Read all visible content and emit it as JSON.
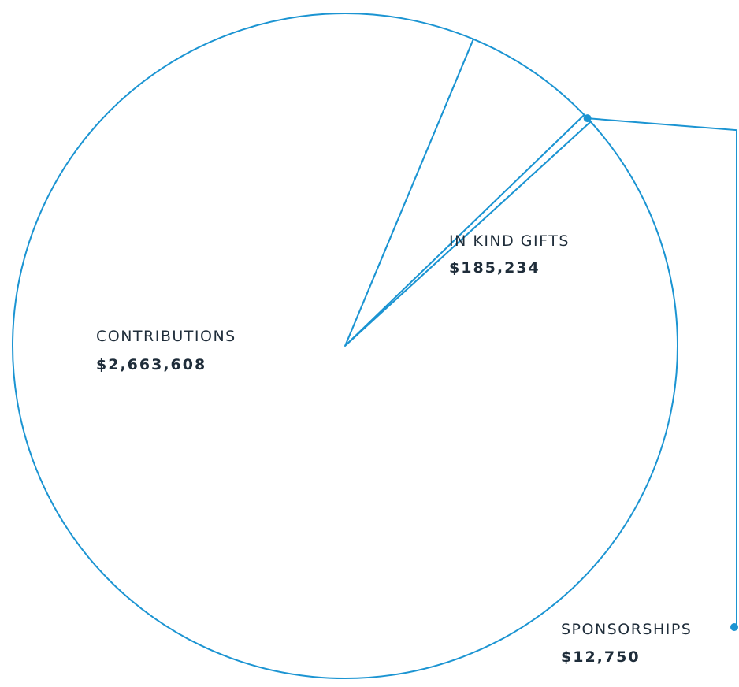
{
  "chart_data": {
    "type": "pie",
    "slices": [
      {
        "label": "CONTRIBUTIONS",
        "value": 2663608,
        "value_label": "$2,663,608"
      },
      {
        "label": "IN KIND GIFTS",
        "value": 185234,
        "value_label": "$185,234"
      },
      {
        "label": "SPONSORSHIPS",
        "value": 12750,
        "value_label": "$12,750"
      }
    ],
    "legend": "none",
    "colors": {
      "stroke": "#1b94d2",
      "fill": "#ffffff",
      "text": "#1f2d3a"
    }
  }
}
